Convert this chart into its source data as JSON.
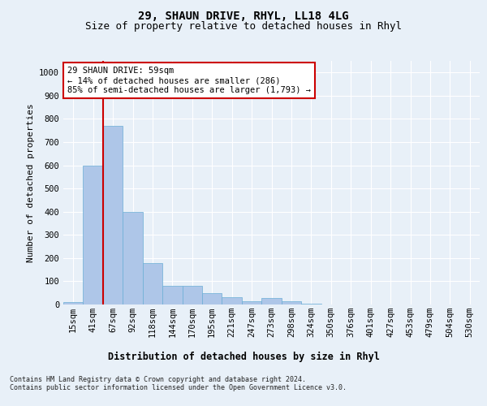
{
  "title1": "29, SHAUN DRIVE, RHYL, LL18 4LG",
  "title2": "Size of property relative to detached houses in Rhyl",
  "xlabel": "Distribution of detached houses by size in Rhyl",
  "ylabel": "Number of detached properties",
  "categories": [
    "15sqm",
    "41sqm",
    "67sqm",
    "92sqm",
    "118sqm",
    "144sqm",
    "170sqm",
    "195sqm",
    "221sqm",
    "247sqm",
    "273sqm",
    "298sqm",
    "324sqm",
    "350sqm",
    "376sqm",
    "401sqm",
    "427sqm",
    "453sqm",
    "479sqm",
    "504sqm",
    "530sqm"
  ],
  "values": [
    10,
    600,
    770,
    400,
    180,
    80,
    80,
    50,
    30,
    15,
    28,
    15,
    5,
    0,
    0,
    0,
    0,
    0,
    0,
    0,
    0
  ],
  "bar_color": "#aec6e8",
  "bar_edge_color": "#6aaed6",
  "vline_x": 1.5,
  "vline_color": "#cc0000",
  "annotation_text": "29 SHAUN DRIVE: 59sqm\n← 14% of detached houses are smaller (286)\n85% of semi-detached houses are larger (1,793) →",
  "annotation_box_color": "#ffffff",
  "annotation_box_edge": "#cc0000",
  "bg_color": "#e8f0f8",
  "plot_bg_color": "#e8f0f8",
  "grid_color": "#ffffff",
  "ylim": [
    0,
    1050
  ],
  "yticks": [
    0,
    100,
    200,
    300,
    400,
    500,
    600,
    700,
    800,
    900,
    1000
  ],
  "footer": "Contains HM Land Registry data © Crown copyright and database right 2024.\nContains public sector information licensed under the Open Government Licence v3.0.",
  "title1_fontsize": 10,
  "title2_fontsize": 9,
  "xlabel_fontsize": 8.5,
  "ylabel_fontsize": 8,
  "tick_fontsize": 7.5,
  "annotation_fontsize": 7.5,
  "footer_fontsize": 6
}
